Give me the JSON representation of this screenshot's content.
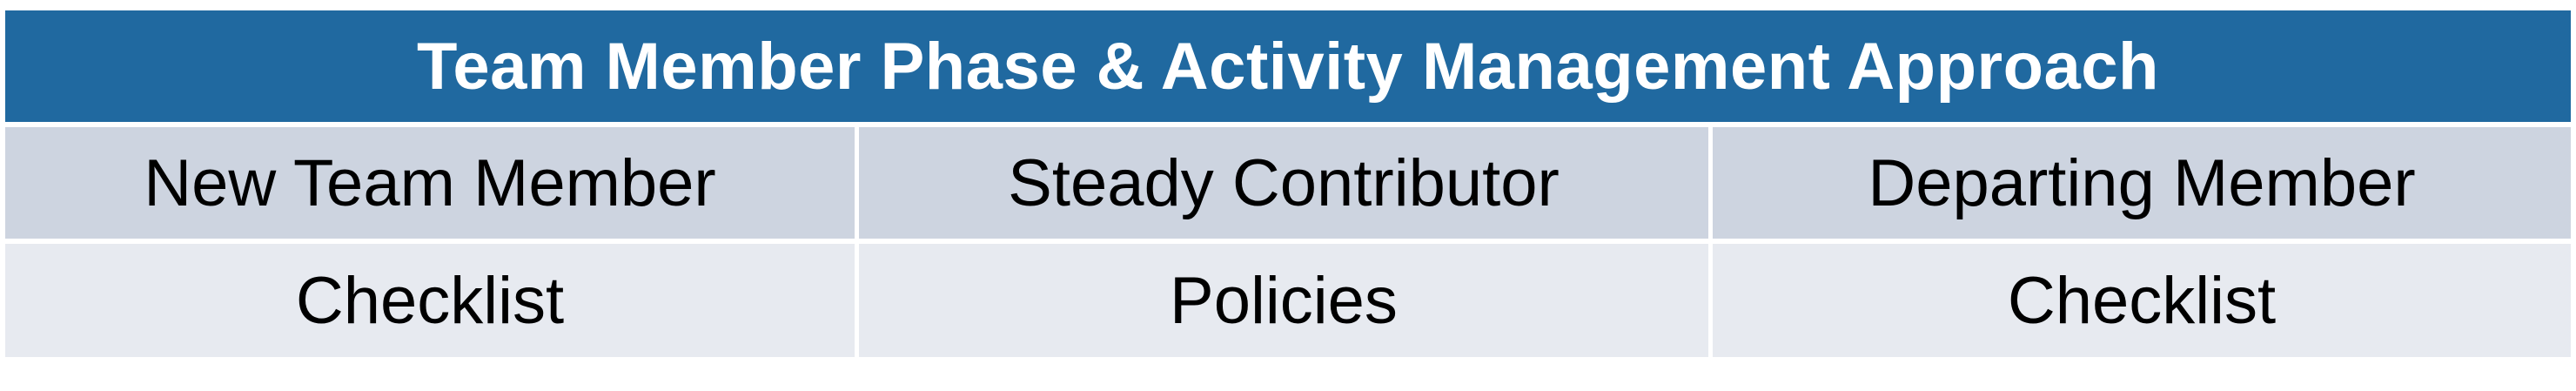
{
  "title": "Team Member Phase & Activity Management Approach",
  "columns": [
    {
      "phase": "New Team Member",
      "item": "Checklist"
    },
    {
      "phase": "Steady Contributor",
      "item": "Policies"
    },
    {
      "phase": "Departing Member",
      "item": "Checklist"
    }
  ],
  "colors": {
    "title_bg": "#2069a0",
    "header_bg": "#cdd4e0",
    "body_bg": "#e7eaf0"
  }
}
